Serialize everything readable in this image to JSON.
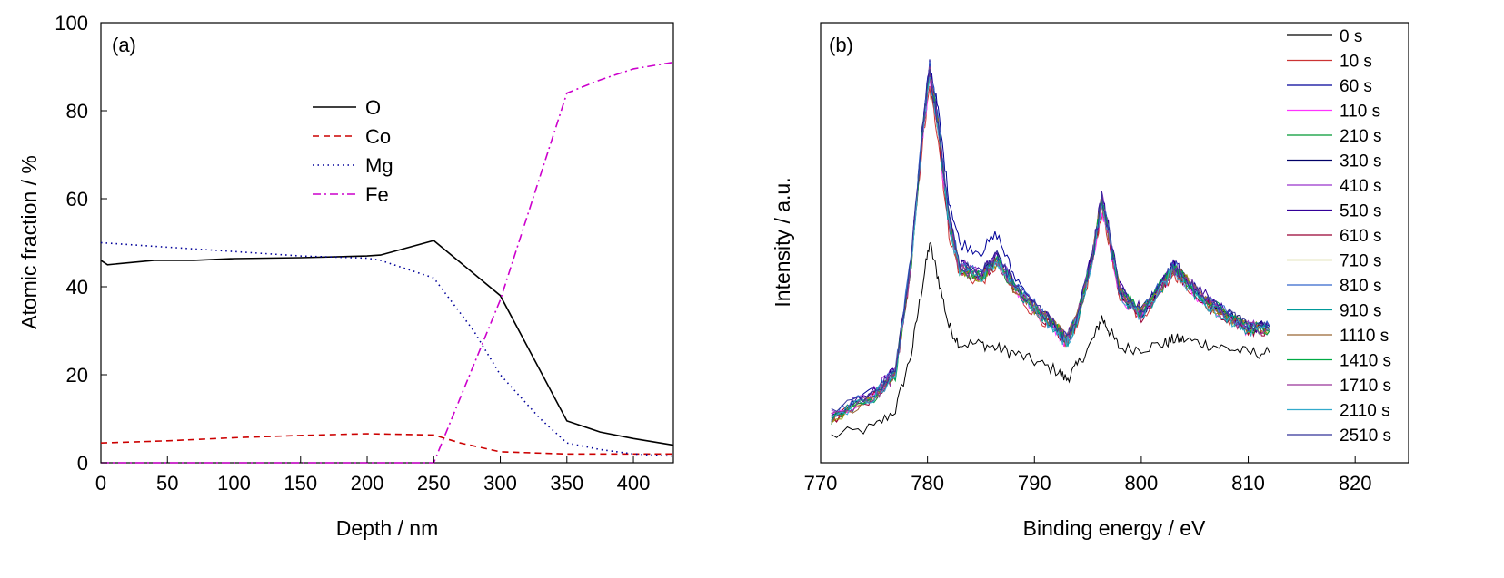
{
  "chart_data": [
    {
      "type": "line",
      "panel_label": "(a)",
      "xlabel": "Depth / nm",
      "ylabel": "Atomic fraction / %",
      "xlim": [
        0,
        430
      ],
      "ylim": [
        0,
        100
      ],
      "xticks": [
        0,
        50,
        100,
        150,
        200,
        250,
        300,
        350,
        400
      ],
      "yticks": [
        0,
        20,
        40,
        60,
        80,
        100
      ],
      "legend_position": "upper-center",
      "series": [
        {
          "name": "O",
          "color": "#000000",
          "style": "solid",
          "x": [
            0,
            5,
            40,
            70,
            100,
            150,
            200,
            210,
            250,
            300,
            350,
            375,
            400,
            430
          ],
          "y": [
            46,
            45,
            46,
            46,
            46.4,
            46.6,
            47,
            47.2,
            50.5,
            38,
            9.5,
            7,
            5.5,
            4
          ]
        },
        {
          "name": "Co",
          "color": "#cc0000",
          "style": "dashed",
          "x": [
            0,
            50,
            100,
            150,
            200,
            250,
            270,
            300,
            350,
            400,
            430
          ],
          "y": [
            4.5,
            5,
            5.7,
            6.2,
            6.6,
            6.3,
            4.5,
            2.5,
            2,
            2,
            2
          ]
        },
        {
          "name": "Mg",
          "color": "#000099",
          "style": "dotted",
          "x": [
            0,
            50,
            100,
            150,
            200,
            210,
            250,
            280,
            300,
            330,
            350,
            375,
            400,
            430
          ],
          "y": [
            50,
            49,
            48,
            47,
            46.5,
            46,
            42,
            30,
            20,
            10,
            4.5,
            3,
            2,
            1.5
          ]
        },
        {
          "name": "Fe",
          "color": "#cc00cc",
          "style": "dashdot",
          "x": [
            0,
            100,
            200,
            250,
            300,
            350,
            375,
            400,
            430
          ],
          "y": [
            0,
            0,
            0,
            0,
            37,
            84,
            87,
            89.5,
            91
          ]
        }
      ]
    },
    {
      "type": "line",
      "panel_label": "(b)",
      "xlabel": "Binding energy / eV",
      "ylabel": "Intensity / a.u.",
      "xlim": [
        770,
        825
      ],
      "xticks": [
        770,
        780,
        790,
        800,
        810,
        820
      ],
      "y_tick_labels_shown": false,
      "legend_position": "top-right",
      "x": [
        771,
        775,
        777,
        778.5,
        779.5,
        780.2,
        781,
        782,
        783,
        785,
        786.5,
        788,
        790,
        792,
        793,
        794,
        795.5,
        796.3,
        797,
        798,
        800,
        802,
        803,
        804,
        806,
        808,
        810,
        812
      ],
      "series": [
        {
          "name": "0 s",
          "color": "#000000",
          "y": [
            0.06,
            0.08,
            0.12,
            0.25,
            0.4,
            0.5,
            0.42,
            0.31,
            0.27,
            0.27,
            0.26,
            0.25,
            0.23,
            0.21,
            0.19,
            0.22,
            0.28,
            0.33,
            0.3,
            0.26,
            0.26,
            0.27,
            0.28,
            0.28,
            0.27,
            0.26,
            0.25,
            0.25
          ]
        },
        {
          "name": "10 s",
          "color": "#cc3333",
          "y": [
            0.1,
            0.15,
            0.2,
            0.45,
            0.72,
            0.85,
            0.74,
            0.52,
            0.43,
            0.41,
            0.45,
            0.39,
            0.34,
            0.3,
            0.27,
            0.32,
            0.46,
            0.57,
            0.5,
            0.38,
            0.33,
            0.4,
            0.43,
            0.41,
            0.36,
            0.33,
            0.3,
            0.3
          ]
        },
        {
          "name": "60 s",
          "color": "#000099",
          "y": [
            0.1,
            0.16,
            0.21,
            0.47,
            0.75,
            0.91,
            0.8,
            0.6,
            0.5,
            0.48,
            0.52,
            0.43,
            0.36,
            0.31,
            0.28,
            0.33,
            0.48,
            0.6,
            0.52,
            0.39,
            0.34,
            0.41,
            0.44,
            0.42,
            0.37,
            0.34,
            0.31,
            0.31
          ]
        },
        {
          "name": "110 s",
          "color": "#ff33ff",
          "y": [
            0.1,
            0.15,
            0.2,
            0.46,
            0.73,
            0.87,
            0.75,
            0.54,
            0.44,
            0.42,
            0.46,
            0.4,
            0.35,
            0.3,
            0.27,
            0.32,
            0.47,
            0.58,
            0.5,
            0.38,
            0.33,
            0.4,
            0.44,
            0.41,
            0.36,
            0.33,
            0.3,
            0.3
          ]
        },
        {
          "name": "210 s",
          "color": "#009933",
          "y": [
            0.1,
            0.15,
            0.2,
            0.46,
            0.74,
            0.88,
            0.76,
            0.54,
            0.44,
            0.42,
            0.46,
            0.4,
            0.35,
            0.31,
            0.28,
            0.33,
            0.47,
            0.59,
            0.51,
            0.39,
            0.34,
            0.41,
            0.44,
            0.42,
            0.37,
            0.33,
            0.31,
            0.3
          ]
        },
        {
          "name": "310 s",
          "color": "#000066",
          "y": [
            0.1,
            0.16,
            0.21,
            0.47,
            0.75,
            0.89,
            0.77,
            0.56,
            0.45,
            0.43,
            0.47,
            0.41,
            0.35,
            0.31,
            0.28,
            0.33,
            0.48,
            0.6,
            0.52,
            0.39,
            0.34,
            0.41,
            0.45,
            0.42,
            0.37,
            0.34,
            0.31,
            0.31
          ]
        },
        {
          "name": "410 s",
          "color": "#9933cc",
          "y": [
            0.11,
            0.16,
            0.21,
            0.47,
            0.75,
            0.89,
            0.77,
            0.55,
            0.45,
            0.43,
            0.47,
            0.41,
            0.36,
            0.31,
            0.28,
            0.33,
            0.48,
            0.61,
            0.52,
            0.39,
            0.34,
            0.41,
            0.45,
            0.42,
            0.37,
            0.34,
            0.31,
            0.31
          ]
        },
        {
          "name": "510 s",
          "color": "#330099",
          "y": [
            0.11,
            0.16,
            0.21,
            0.47,
            0.75,
            0.9,
            0.78,
            0.56,
            0.45,
            0.43,
            0.47,
            0.41,
            0.36,
            0.31,
            0.28,
            0.33,
            0.49,
            0.61,
            0.53,
            0.4,
            0.35,
            0.41,
            0.45,
            0.43,
            0.38,
            0.34,
            0.31,
            0.31
          ]
        },
        {
          "name": "610 s",
          "color": "#990033",
          "y": [
            0.1,
            0.15,
            0.2,
            0.46,
            0.74,
            0.88,
            0.76,
            0.54,
            0.44,
            0.42,
            0.46,
            0.4,
            0.35,
            0.3,
            0.27,
            0.32,
            0.47,
            0.59,
            0.51,
            0.38,
            0.33,
            0.4,
            0.44,
            0.41,
            0.36,
            0.33,
            0.3,
            0.3
          ]
        },
        {
          "name": "710 s",
          "color": "#999900",
          "y": [
            0.1,
            0.15,
            0.2,
            0.46,
            0.74,
            0.89,
            0.77,
            0.55,
            0.44,
            0.42,
            0.46,
            0.4,
            0.35,
            0.31,
            0.28,
            0.33,
            0.48,
            0.6,
            0.51,
            0.39,
            0.34,
            0.4,
            0.44,
            0.42,
            0.37,
            0.33,
            0.31,
            0.3
          ]
        },
        {
          "name": "810 s",
          "color": "#3366cc",
          "y": [
            0.11,
            0.16,
            0.21,
            0.47,
            0.75,
            0.9,
            0.78,
            0.56,
            0.45,
            0.43,
            0.47,
            0.41,
            0.36,
            0.31,
            0.28,
            0.33,
            0.48,
            0.6,
            0.52,
            0.39,
            0.34,
            0.41,
            0.45,
            0.42,
            0.37,
            0.34,
            0.31,
            0.31
          ]
        },
        {
          "name": "910 s",
          "color": "#009999",
          "y": [
            0.1,
            0.15,
            0.2,
            0.46,
            0.74,
            0.88,
            0.76,
            0.54,
            0.44,
            0.42,
            0.46,
            0.4,
            0.35,
            0.3,
            0.27,
            0.32,
            0.47,
            0.59,
            0.51,
            0.38,
            0.33,
            0.4,
            0.44,
            0.41,
            0.36,
            0.33,
            0.3,
            0.3
          ]
        },
        {
          "name": "1110 s",
          "color": "#996633",
          "y": [
            0.1,
            0.15,
            0.2,
            0.46,
            0.74,
            0.89,
            0.77,
            0.55,
            0.44,
            0.42,
            0.46,
            0.4,
            0.35,
            0.31,
            0.28,
            0.33,
            0.48,
            0.6,
            0.51,
            0.39,
            0.34,
            0.4,
            0.44,
            0.42,
            0.37,
            0.33,
            0.31,
            0.3
          ]
        },
        {
          "name": "1410 s",
          "color": "#00aa44",
          "y": [
            0.1,
            0.15,
            0.2,
            0.46,
            0.74,
            0.89,
            0.77,
            0.55,
            0.44,
            0.42,
            0.46,
            0.4,
            0.35,
            0.31,
            0.28,
            0.33,
            0.48,
            0.6,
            0.52,
            0.39,
            0.34,
            0.41,
            0.44,
            0.42,
            0.37,
            0.34,
            0.31,
            0.3
          ]
        },
        {
          "name": "1710 s",
          "color": "#993399",
          "y": [
            0.1,
            0.15,
            0.2,
            0.46,
            0.74,
            0.89,
            0.77,
            0.55,
            0.44,
            0.42,
            0.46,
            0.4,
            0.35,
            0.31,
            0.28,
            0.33,
            0.48,
            0.6,
            0.51,
            0.39,
            0.34,
            0.4,
            0.44,
            0.42,
            0.37,
            0.33,
            0.31,
            0.3
          ]
        },
        {
          "name": "2110 s",
          "color": "#33aacc",
          "y": [
            0.1,
            0.15,
            0.2,
            0.46,
            0.74,
            0.88,
            0.76,
            0.54,
            0.44,
            0.42,
            0.46,
            0.4,
            0.35,
            0.3,
            0.27,
            0.32,
            0.47,
            0.59,
            0.51,
            0.38,
            0.33,
            0.4,
            0.44,
            0.41,
            0.36,
            0.33,
            0.3,
            0.3
          ]
        },
        {
          "name": "2510 s",
          "color": "#333399",
          "y": [
            0.11,
            0.16,
            0.21,
            0.47,
            0.75,
            0.89,
            0.77,
            0.56,
            0.45,
            0.43,
            0.47,
            0.41,
            0.36,
            0.31,
            0.28,
            0.33,
            0.48,
            0.6,
            0.52,
            0.39,
            0.34,
            0.41,
            0.45,
            0.42,
            0.37,
            0.34,
            0.31,
            0.31
          ]
        }
      ]
    }
  ]
}
